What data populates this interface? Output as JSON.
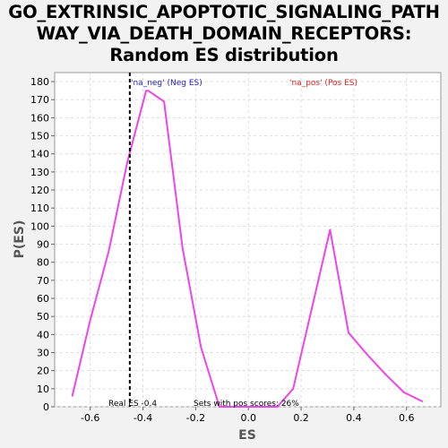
{
  "chart_data": {
    "type": "line",
    "title_lines": [
      "GO_EXTRINSIC_APOPTOTIC_SIGNALING_PATH",
      "WAY_VIA_DEATH_DOMAIN_RECEPTORS:",
      "Random ES distribution"
    ],
    "xlabel": "ES",
    "ylabel": "P(ES)",
    "xlim": [
      -0.735,
      0.73
    ],
    "ylim": [
      0,
      185
    ],
    "xticks": [
      -0.6,
      -0.4,
      -0.2,
      0.0,
      0.2,
      0.4,
      0.6
    ],
    "xtick_labels": [
      "-0.6",
      "-0.4",
      "-0.2",
      "0.0",
      "0.2",
      "0.4",
      "0.6"
    ],
    "yticks": [
      0,
      10,
      20,
      30,
      40,
      50,
      60,
      70,
      80,
      90,
      100,
      110,
      120,
      130,
      140,
      150,
      160,
      170,
      180
    ],
    "grid": true,
    "series": [
      {
        "color": "#ee44ee",
        "x": [
          -0.668,
          -0.6,
          -0.53,
          -0.46,
          -0.388,
          -0.38,
          -0.32,
          -0.25,
          -0.18,
          -0.11,
          -0.04,
          0.04,
          0.11,
          0.17,
          0.24,
          0.31,
          0.38,
          0.45,
          0.52,
          0.59,
          0.66
        ],
        "y": [
          6,
          48,
          86,
          135,
          175,
          175,
          169,
          88,
          33,
          0,
          0,
          0,
          0,
          10,
          54,
          98,
          41,
          29,
          18,
          8,
          3
        ]
      }
    ],
    "vline": {
      "x": -0.45,
      "style": "dashed",
      "color": "#000000"
    },
    "annotations": {
      "neg": {
        "text": "'na_neg' (Neg ES)",
        "color": "#2222cc"
      },
      "pos": {
        "text": "'na_pos' (Pos ES)",
        "color": "#dd2222"
      },
      "real_es": {
        "text": "Real ES -0.4",
        "color": "#000000"
      },
      "pos_scores": {
        "text": "Sets with pos scores: 26%",
        "color": "#000000"
      }
    }
  }
}
